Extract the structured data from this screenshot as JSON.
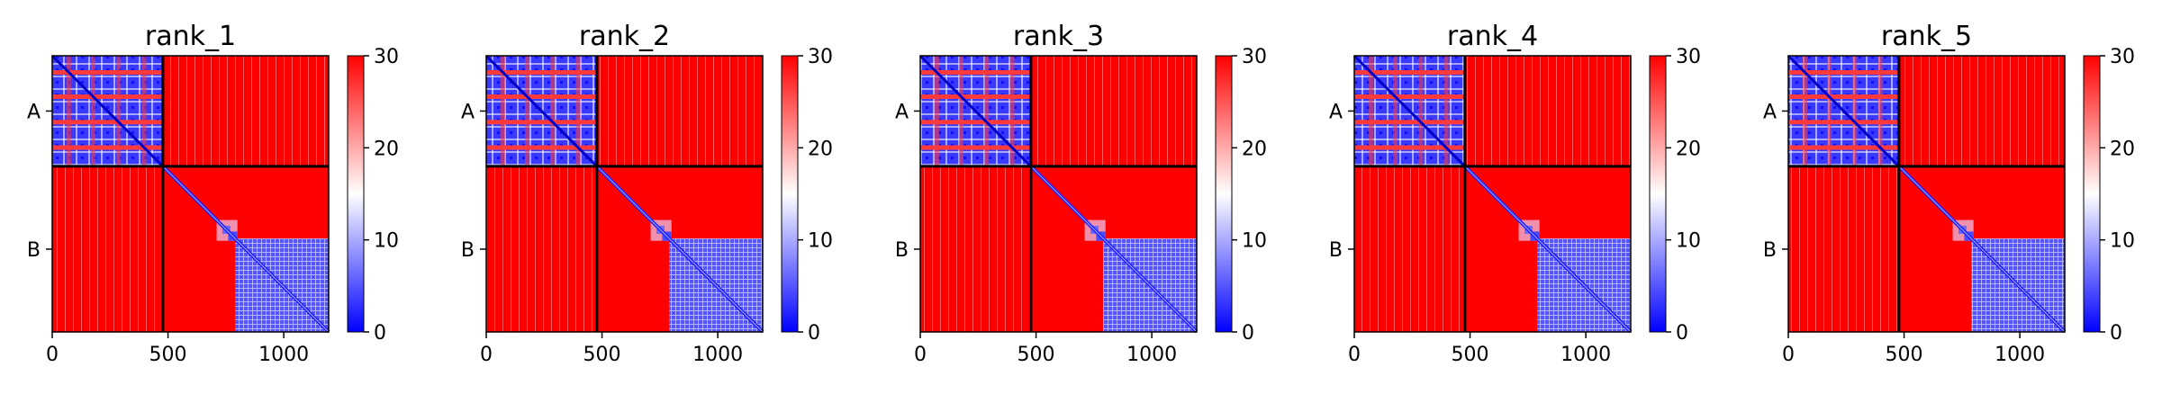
{
  "figure": {
    "colors": {
      "low": "#0000ff",
      "mid": "#ffffff",
      "high": "#ff0000",
      "frame": "#000000"
    }
  },
  "chart_data": [
    {
      "type": "heatmap",
      "title": "rank_1",
      "x_ticks": [
        0,
        500,
        1000
      ],
      "x_tick_labels": [
        "0",
        "500",
        "1000"
      ],
      "xlim": [
        0,
        1194
      ],
      "chains": [
        {
          "name": "A",
          "start": 0,
          "end": 478
        },
        {
          "name": "B",
          "start": 478,
          "end": 1194
        }
      ],
      "boundary": 478,
      "colorbar": {
        "min": 0,
        "max": 30,
        "ticks": [
          0,
          10,
          20,
          30
        ],
        "tick_labels": [
          "0",
          "10",
          "20",
          "30"
        ],
        "cmap": "bwr"
      }
    },
    {
      "type": "heatmap",
      "title": "rank_2",
      "x_ticks": [
        0,
        500,
        1000
      ],
      "x_tick_labels": [
        "0",
        "500",
        "1000"
      ],
      "xlim": [
        0,
        1194
      ],
      "chains": [
        {
          "name": "A",
          "start": 0,
          "end": 478
        },
        {
          "name": "B",
          "start": 478,
          "end": 1194
        }
      ],
      "boundary": 478,
      "colorbar": {
        "min": 0,
        "max": 30,
        "ticks": [
          0,
          10,
          20,
          30
        ],
        "tick_labels": [
          "0",
          "10",
          "20",
          "30"
        ],
        "cmap": "bwr"
      }
    },
    {
      "type": "heatmap",
      "title": "rank_3",
      "x_ticks": [
        0,
        500,
        1000
      ],
      "x_tick_labels": [
        "0",
        "500",
        "1000"
      ],
      "xlim": [
        0,
        1194
      ],
      "chains": [
        {
          "name": "A",
          "start": 0,
          "end": 478
        },
        {
          "name": "B",
          "start": 478,
          "end": 1194
        }
      ],
      "boundary": 478,
      "colorbar": {
        "min": 0,
        "max": 30,
        "ticks": [
          0,
          10,
          20,
          30
        ],
        "tick_labels": [
          "0",
          "10",
          "20",
          "30"
        ],
        "cmap": "bwr"
      }
    },
    {
      "type": "heatmap",
      "title": "rank_4",
      "x_ticks": [
        0,
        500,
        1000
      ],
      "x_tick_labels": [
        "0",
        "500",
        "1000"
      ],
      "xlim": [
        0,
        1194
      ],
      "chains": [
        {
          "name": "A",
          "start": 0,
          "end": 478
        },
        {
          "name": "B",
          "start": 478,
          "end": 1194
        }
      ],
      "boundary": 478,
      "colorbar": {
        "min": 0,
        "max": 30,
        "ticks": [
          0,
          10,
          20,
          30
        ],
        "tick_labels": [
          "0",
          "10",
          "20",
          "30"
        ],
        "cmap": "bwr"
      }
    },
    {
      "type": "heatmap",
      "title": "rank_5",
      "x_ticks": [
        0,
        500,
        1000
      ],
      "x_tick_labels": [
        "0",
        "500",
        "1000"
      ],
      "xlim": [
        0,
        1194
      ],
      "chains": [
        {
          "name": "A",
          "start": 0,
          "end": 478
        },
        {
          "name": "B",
          "start": 478,
          "end": 1194
        }
      ],
      "boundary": 478,
      "colorbar": {
        "min": 0,
        "max": 30,
        "ticks": [
          0,
          10,
          20,
          30
        ],
        "tick_labels": [
          "0",
          "10",
          "20",
          "30"
        ],
        "cmap": "bwr"
      }
    }
  ]
}
